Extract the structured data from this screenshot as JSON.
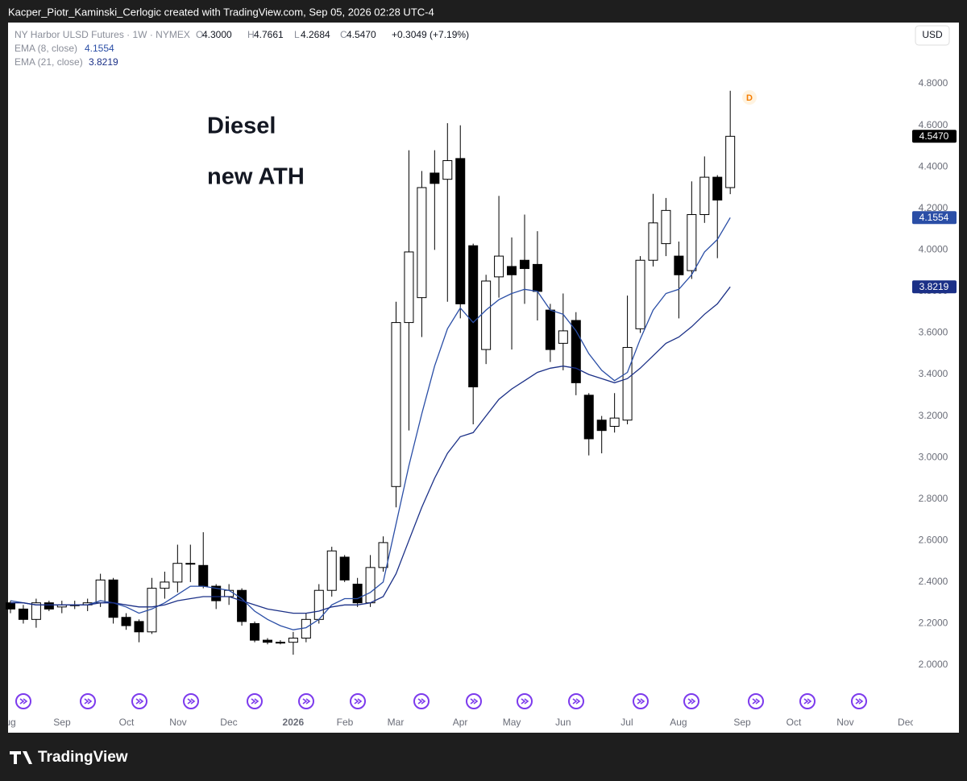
{
  "header": {
    "attribution": "Kacper_Piotr_Kaminski_Cerlogic created with TradingView.com, Sep 05, 2026 02:28 UTC-4"
  },
  "chart_data": {
    "type": "candlestick",
    "title": "NY Harbor ULSD Futures · 1W · NYMEX",
    "ohlc_labels": [
      {
        "key": "O",
        "value": "4.3000"
      },
      {
        "key": "H",
        "value": "4.7661"
      },
      {
        "key": "L",
        "value": "4.2684"
      },
      {
        "key": "C",
        "value": "4.5470"
      }
    ],
    "change": "+0.3049 (+7.19%)",
    "currency": "USD",
    "annotations": [
      "Diesel",
      "new ATH"
    ],
    "marker": "D",
    "up_color": "#ffffff",
    "down_color": "#000000",
    "open": [
      2.3,
      2.27,
      2.22,
      2.3,
      2.28,
      2.29,
      2.29,
      2.3,
      2.41,
      2.23,
      2.21,
      2.16,
      2.37,
      2.4,
      2.49,
      2.48,
      2.38,
      2.33,
      2.36,
      2.2,
      2.12,
      2.11,
      2.11,
      2.13,
      2.22,
      2.36,
      2.52,
      2.39,
      2.3,
      2.47,
      2.86,
      3.65,
      3.77,
      4.37,
      4.34,
      4.44,
      4.02,
      3.52,
      3.87,
      3.92,
      3.95,
      3.93,
      3.71,
      3.55,
      3.66,
      3.3,
      3.18,
      3.15,
      3.18,
      3.62,
      3.95,
      4.03,
      3.97,
      3.9,
      4.17,
      4.35,
      4.3
    ],
    "high": [
      2.31,
      2.29,
      2.32,
      2.31,
      2.31,
      2.31,
      2.32,
      2.44,
      2.42,
      2.25,
      2.22,
      2.42,
      2.45,
      2.58,
      2.58,
      2.64,
      2.39,
      2.39,
      2.37,
      2.21,
      2.13,
      2.12,
      2.16,
      2.25,
      2.39,
      2.57,
      2.53,
      2.42,
      2.53,
      2.62,
      3.75,
      4.48,
      4.38,
      4.48,
      4.61,
      4.6,
      4.03,
      3.88,
      4.26,
      4.06,
      4.17,
      4.09,
      3.74,
      3.79,
      3.7,
      3.31,
      3.2,
      3.31,
      3.78,
      3.97,
      4.27,
      4.25,
      4.04,
      4.33,
      4.45,
      4.36,
      4.7661
    ],
    "low": [
      2.25,
      2.2,
      2.18,
      2.26,
      2.25,
      2.27,
      2.26,
      2.28,
      2.2,
      2.17,
      2.11,
      2.15,
      2.32,
      2.35,
      2.4,
      2.37,
      2.27,
      2.29,
      2.19,
      2.11,
      2.1,
      2.1,
      2.05,
      2.11,
      2.2,
      2.33,
      2.4,
      2.28,
      2.28,
      2.45,
      2.76,
      3.13,
      3.58,
      4.0,
      3.75,
      3.67,
      3.16,
      3.45,
      3.77,
      3.52,
      3.74,
      3.66,
      3.46,
      3.42,
      3.3,
      3.01,
      3.02,
      3.12,
      3.16,
      3.6,
      3.92,
      3.97,
      3.67,
      3.86,
      4.13,
      3.96,
      4.2684
    ],
    "close": [
      2.27,
      2.22,
      2.3,
      2.27,
      2.29,
      2.29,
      2.3,
      2.41,
      2.23,
      2.19,
      2.16,
      2.37,
      2.4,
      2.49,
      2.49,
      2.38,
      2.31,
      2.36,
      2.21,
      2.12,
      2.11,
      2.11,
      2.13,
      2.22,
      2.36,
      2.55,
      2.41,
      2.3,
      2.47,
      2.59,
      3.65,
      3.99,
      4.3,
      4.32,
      4.43,
      3.74,
      3.34,
      3.85,
      3.97,
      3.88,
      3.91,
      3.8,
      3.52,
      3.61,
      3.36,
      3.09,
      3.13,
      3.19,
      3.53,
      3.95,
      4.13,
      4.19,
      3.88,
      4.17,
      4.35,
      4.24,
      4.547
    ],
    "close_label": "4.5470",
    "series": [
      {
        "name": "EMA (8, close)",
        "color": "#2a4ea6",
        "last_label": "4.1554",
        "values": [
          2.31,
          2.3,
          2.29,
          2.29,
          2.29,
          2.29,
          2.29,
          2.31,
          2.3,
          2.28,
          2.25,
          2.27,
          2.3,
          2.34,
          2.38,
          2.38,
          2.37,
          2.36,
          2.32,
          2.26,
          2.22,
          2.19,
          2.17,
          2.18,
          2.22,
          2.29,
          2.32,
          2.32,
          2.35,
          2.4,
          2.68,
          2.96,
          3.21,
          3.44,
          3.62,
          3.72,
          3.65,
          3.71,
          3.76,
          3.79,
          3.81,
          3.8,
          3.71,
          3.69,
          3.61,
          3.5,
          3.42,
          3.37,
          3.41,
          3.57,
          3.71,
          3.79,
          3.81,
          3.88,
          3.99,
          4.05,
          4.1554
        ]
      },
      {
        "name": "EMA (21, close)",
        "color": "#1b3087",
        "last_label": "3.8219",
        "values": [
          2.3,
          2.3,
          2.29,
          2.29,
          2.29,
          2.29,
          2.29,
          2.3,
          2.3,
          2.29,
          2.28,
          2.28,
          2.29,
          2.31,
          2.32,
          2.33,
          2.33,
          2.33,
          2.31,
          2.29,
          2.27,
          2.26,
          2.25,
          2.25,
          2.26,
          2.28,
          2.29,
          2.29,
          2.3,
          2.33,
          2.44,
          2.6,
          2.76,
          2.9,
          3.02,
          3.1,
          3.12,
          3.2,
          3.28,
          3.33,
          3.37,
          3.41,
          3.43,
          3.44,
          3.43,
          3.4,
          3.38,
          3.36,
          3.38,
          3.43,
          3.49,
          3.55,
          3.58,
          3.63,
          3.69,
          3.74,
          3.8219
        ]
      }
    ],
    "xlim": [
      -0.2,
      69.8
    ],
    "xticks": [
      {
        "value": -0.25,
        "label": "Aug"
      },
      {
        "value": 4.01,
        "label": "Sep"
      },
      {
        "value": 9.03,
        "label": "Oct"
      },
      {
        "value": 13.04,
        "label": "Nov"
      },
      {
        "value": 16.99,
        "label": "Dec"
      },
      {
        "value": 22.0,
        "label": "2026"
      },
      {
        "value": 26.02,
        "label": "Feb"
      },
      {
        "value": 29.97,
        "label": "Mar"
      },
      {
        "value": 34.99,
        "label": "Apr"
      },
      {
        "value": 39.0,
        "label": "May"
      },
      {
        "value": 43.0,
        "label": "Jun"
      },
      {
        "value": 47.96,
        "label": "Jul"
      },
      {
        "value": 51.97,
        "label": "Aug"
      },
      {
        "value": 56.93,
        "label": "Sep"
      },
      {
        "value": 60.94,
        "label": "Oct"
      },
      {
        "value": 64.95,
        "label": "Nov"
      },
      {
        "value": 69.7,
        "label": "Dec"
      }
    ],
    "ylim": [
      1.783,
      5.095
    ],
    "yticks": [
      {
        "value": 2,
        "label": "2.0000"
      },
      {
        "value": 2.2,
        "label": "2.2000"
      },
      {
        "value": 2.4,
        "label": "2.4000"
      },
      {
        "value": 2.6,
        "label": "2.6000"
      },
      {
        "value": 2.8,
        "label": "2.8000"
      },
      {
        "value": 3,
        "label": "3.0000"
      },
      {
        "value": 3.2,
        "label": "3.2000"
      },
      {
        "value": 3.4,
        "label": "3.4000"
      },
      {
        "value": 3.6,
        "label": "3.6000"
      },
      {
        "value": 3.8,
        "label": "3.8000"
      },
      {
        "value": 4,
        "label": "4.0000"
      },
      {
        "value": 4.2,
        "label": "4.2000"
      },
      {
        "value": 4.4,
        "label": "4.4000"
      },
      {
        "value": 4.6,
        "label": "4.6000"
      },
      {
        "value": 4.8,
        "label": "4.8000"
      }
    ]
  },
  "footer": {
    "brand": "TradingView"
  }
}
